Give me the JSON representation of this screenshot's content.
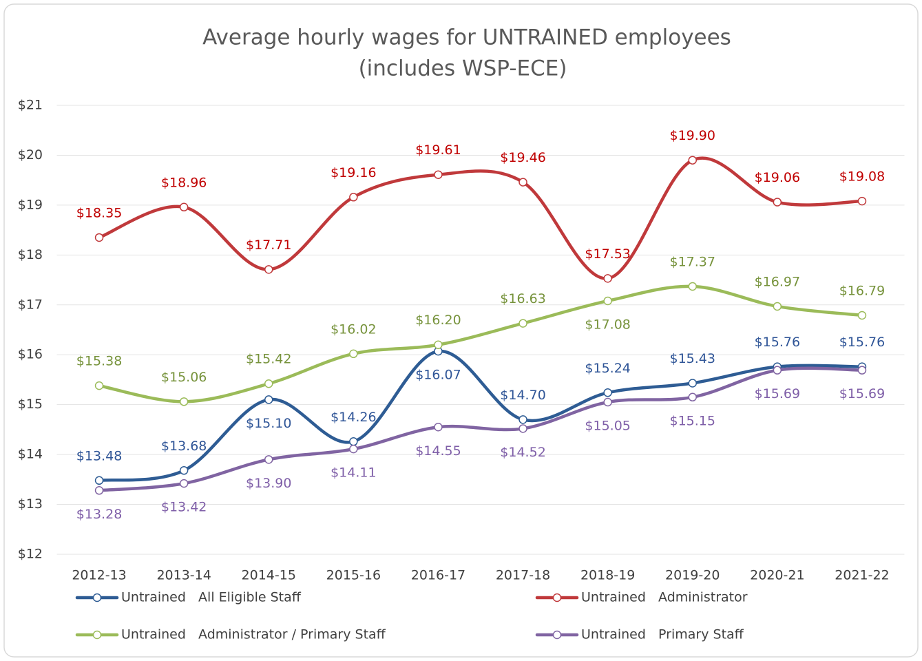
{
  "chart_data": {
    "type": "line",
    "title": "Average hourly wages for UNTRAINED employees",
    "subtitle": "(includes WSP-ECE)",
    "categories": [
      "2012-13",
      "2013-14",
      "2014-15",
      "2015-16",
      "2016-17",
      "2017-18",
      "2018-19",
      "2019-20",
      "2020-21",
      "2021-22"
    ],
    "ylim": [
      12,
      21
    ],
    "yticks": [
      {
        "value": 12,
        "label": "$12"
      },
      {
        "value": 13,
        "label": "$13"
      },
      {
        "value": 14,
        "label": "$14"
      },
      {
        "value": 15,
        "label": "$15"
      },
      {
        "value": 16,
        "label": "$16"
      },
      {
        "value": 17,
        "label": "$17"
      },
      {
        "value": 18,
        "label": "$18"
      },
      {
        "value": 19,
        "label": "$19"
      },
      {
        "value": 20,
        "label": "$20"
      },
      {
        "value": 21,
        "label": "$21"
      }
    ],
    "grid": true,
    "legend": "bottom",
    "series": [
      {
        "name": "Untrained   All Eligible Staff",
        "color": "#2e5c94",
        "label_color": "#2f5597",
        "values": [
          13.48,
          13.68,
          15.1,
          14.26,
          16.07,
          14.7,
          15.24,
          15.43,
          15.76,
          15.76
        ],
        "value_labels": [
          "$13.48",
          "$13.68",
          "$15.10",
          "$14.26",
          "$16.07",
          "$14.70",
          "$15.24",
          "$15.43",
          "$15.76",
          "$15.76"
        ]
      },
      {
        "name": "Untrained   Administrator",
        "color": "#c0393b",
        "label_color": "#c00000",
        "values": [
          18.35,
          18.96,
          17.71,
          19.16,
          19.61,
          19.46,
          17.53,
          19.9,
          19.06,
          19.08
        ],
        "value_labels": [
          "$18.35",
          "$18.96",
          "$17.71",
          "$19.16",
          "$19.61",
          "$19.46",
          "$17.53",
          "$19.90",
          "$19.06",
          "$19.08"
        ]
      },
      {
        "name": "Untrained   Administrator / Primary Staff",
        "color": "#9bbb59",
        "label_color": "#77933c",
        "values": [
          15.38,
          15.06,
          15.42,
          16.02,
          16.2,
          16.63,
          17.08,
          17.37,
          16.97,
          16.79
        ],
        "value_labels": [
          "$15.38",
          "$15.06",
          "$15.42",
          "$16.02",
          "$16.20",
          "$16.63",
          "$17.08",
          "$17.37",
          "$16.97",
          "$16.79"
        ]
      },
      {
        "name": "Untrained   Primary Staff",
        "color": "#8064a2",
        "label_color": "#7f5fa8",
        "values": [
          13.28,
          13.42,
          13.9,
          14.11,
          14.55,
          14.52,
          15.05,
          15.15,
          15.69,
          15.69
        ],
        "value_labels": [
          "$13.28",
          "$13.42",
          "$13.90",
          "$14.11",
          "$14.55",
          "$14.52",
          "$15.05",
          "$15.15",
          "$15.69",
          "$15.69"
        ]
      }
    ]
  }
}
